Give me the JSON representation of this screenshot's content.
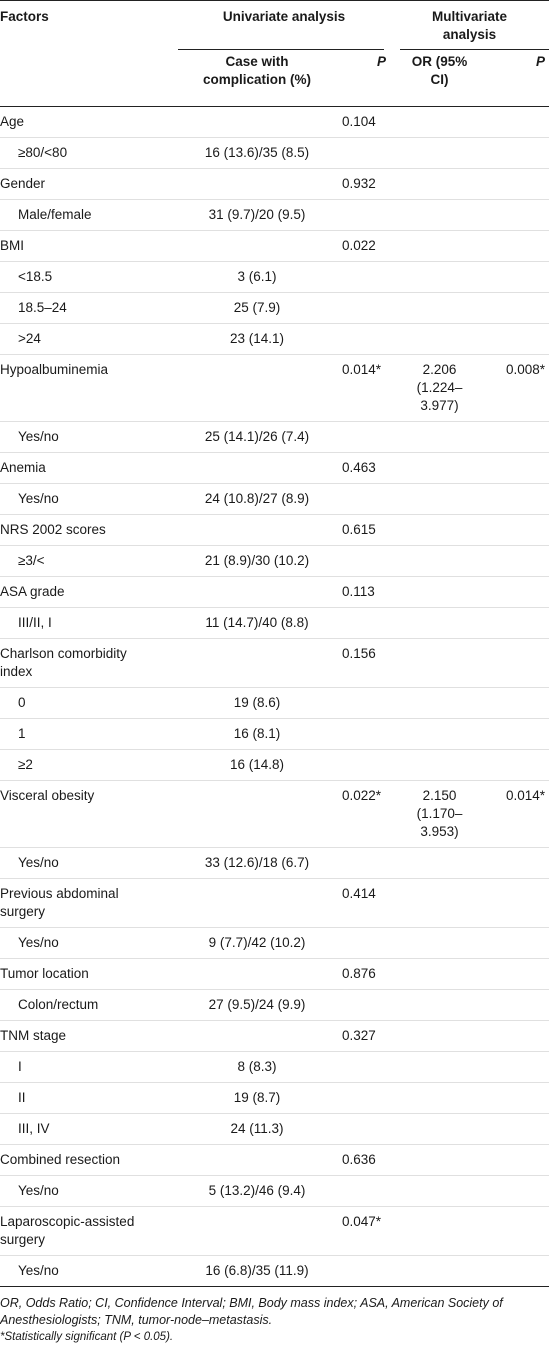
{
  "header": {
    "factors": "Factors",
    "univariate": "Univariate analysis",
    "multivariate": "Multivariate analysis",
    "case_with_complication": "Case with complication (%)",
    "p": "P",
    "or": "OR (95% CI)"
  },
  "rows": [
    {
      "factor": "Age",
      "indent": false,
      "case": "",
      "p_uni": "0.104",
      "or": "",
      "p_multi": ""
    },
    {
      "factor": "≥80/<80",
      "indent": true,
      "case": "16 (13.6)/35 (8.5)",
      "p_uni": "",
      "or": "",
      "p_multi": ""
    },
    {
      "factor": "Gender",
      "indent": false,
      "case": "",
      "p_uni": "0.932",
      "or": "",
      "p_multi": ""
    },
    {
      "factor": "Male/female",
      "indent": true,
      "case": "31 (9.7)/20 (9.5)",
      "p_uni": "",
      "or": "",
      "p_multi": ""
    },
    {
      "factor": "BMI",
      "indent": false,
      "case": "",
      "p_uni": "0.022",
      "or": "",
      "p_multi": ""
    },
    {
      "factor": "<18.5",
      "indent": true,
      "case": "3 (6.1)",
      "p_uni": "",
      "or": "",
      "p_multi": ""
    },
    {
      "factor": "18.5–24",
      "indent": true,
      "case": "25 (7.9)",
      "p_uni": "",
      "or": "",
      "p_multi": ""
    },
    {
      "factor": ">24",
      "indent": true,
      "case": "23 (14.1)",
      "p_uni": "",
      "or": "",
      "p_multi": ""
    },
    {
      "factor": "Hypoalbuminemia",
      "indent": false,
      "case": "",
      "p_uni": "0.014*",
      "or": "2.206 (1.224–3.977)",
      "p_multi": "0.008*"
    },
    {
      "factor": "Yes/no",
      "indent": true,
      "case": "25 (14.1)/26 (7.4)",
      "p_uni": "",
      "or": "",
      "p_multi": ""
    },
    {
      "factor": "Anemia",
      "indent": false,
      "case": "",
      "p_uni": "0.463",
      "or": "",
      "p_multi": ""
    },
    {
      "factor": "Yes/no",
      "indent": true,
      "case": "24 (10.8)/27 (8.9)",
      "p_uni": "",
      "or": "",
      "p_multi": ""
    },
    {
      "factor": "NRS 2002 scores",
      "indent": false,
      "case": "",
      "p_uni": "0.615",
      "or": "",
      "p_multi": ""
    },
    {
      "factor": "≥3/<",
      "indent": true,
      "case": "21 (8.9)/30 (10.2)",
      "p_uni": "",
      "or": "",
      "p_multi": ""
    },
    {
      "factor": "ASA grade",
      "indent": false,
      "case": "",
      "p_uni": "0.113",
      "or": "",
      "p_multi": ""
    },
    {
      "factor": "III/II, I",
      "indent": true,
      "case": "11 (14.7)/40 (8.8)",
      "p_uni": "",
      "or": "",
      "p_multi": ""
    },
    {
      "factor": "Charlson comorbidity index",
      "indent": false,
      "case": "",
      "p_uni": "0.156",
      "or": "",
      "p_multi": ""
    },
    {
      "factor": "0",
      "indent": true,
      "case": "19 (8.6)",
      "p_uni": "",
      "or": "",
      "p_multi": ""
    },
    {
      "factor": "1",
      "indent": true,
      "case": "16 (8.1)",
      "p_uni": "",
      "or": "",
      "p_multi": ""
    },
    {
      "factor": "≥2",
      "indent": true,
      "case": "16 (14.8)",
      "p_uni": "",
      "or": "",
      "p_multi": ""
    },
    {
      "factor": "Visceral obesity",
      "indent": false,
      "case": "",
      "p_uni": "0.022*",
      "or": "2.150 (1.170–3.953)",
      "p_multi": "0.014*"
    },
    {
      "factor": "Yes/no",
      "indent": true,
      "case": "33 (12.6)/18 (6.7)",
      "p_uni": "",
      "or": "",
      "p_multi": ""
    },
    {
      "factor": "Previous abdominal surgery",
      "indent": false,
      "case": "",
      "p_uni": "0.414",
      "or": "",
      "p_multi": ""
    },
    {
      "factor": "Yes/no",
      "indent": true,
      "case": "9 (7.7)/42 (10.2)",
      "p_uni": "",
      "or": "",
      "p_multi": ""
    },
    {
      "factor": "Tumor location",
      "indent": false,
      "case": "",
      "p_uni": "0.876",
      "or": "",
      "p_multi": ""
    },
    {
      "factor": "Colon/rectum",
      "indent": true,
      "case": "27 (9.5)/24 (9.9)",
      "p_uni": "",
      "or": "",
      "p_multi": ""
    },
    {
      "factor": "TNM stage",
      "indent": false,
      "case": "",
      "p_uni": "0.327",
      "or": "",
      "p_multi": ""
    },
    {
      "factor": "I",
      "indent": true,
      "case": "8 (8.3)",
      "p_uni": "",
      "or": "",
      "p_multi": ""
    },
    {
      "factor": "II",
      "indent": true,
      "case": "19 (8.7)",
      "p_uni": "",
      "or": "",
      "p_multi": ""
    },
    {
      "factor": "III, IV",
      "indent": true,
      "case": "24 (11.3)",
      "p_uni": "",
      "or": "",
      "p_multi": ""
    },
    {
      "factor": "Combined resection",
      "indent": false,
      "case": "",
      "p_uni": "0.636",
      "or": "",
      "p_multi": ""
    },
    {
      "factor": "Yes/no",
      "indent": true,
      "case": "5 (13.2)/46 (9.4)",
      "p_uni": "",
      "or": "",
      "p_multi": ""
    },
    {
      "factor": "Laparoscopic-assisted surgery",
      "indent": false,
      "case": "",
      "p_uni": "0.047*",
      "or": "",
      "p_multi": ""
    },
    {
      "factor": "Yes/no",
      "indent": true,
      "case": "16 (6.8)/35 (11.9)",
      "p_uni": "",
      "or": "",
      "p_multi": ""
    }
  ],
  "footnotes": {
    "abbreviations": "OR, Odds Ratio; CI, Confidence Interval; BMI, Body mass index; ASA, American Society of Anesthesiologists; TNM, tumor-node–metastasis.",
    "significance": "*Statistically significant (P < 0.05)."
  }
}
